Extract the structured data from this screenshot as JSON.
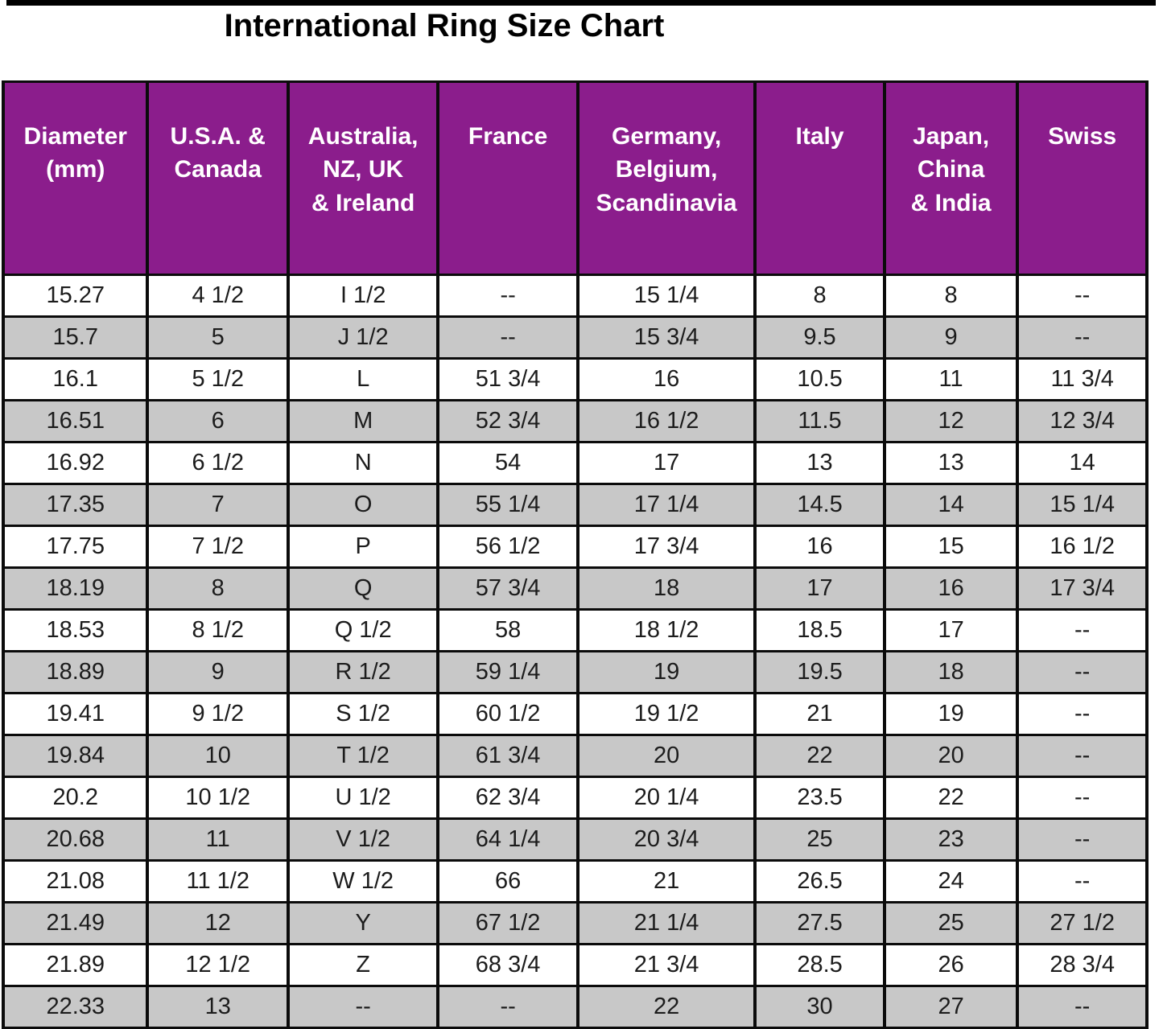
{
  "title": "International Ring Size Chart",
  "colors": {
    "header_bg": "#8E1690",
    "header_text": "#FFFFFF",
    "row_bg": "#FFFFFF",
    "alt_row_bg": "#C9C9C9",
    "border": "#0B0B0B",
    "text": "#1C1C1C",
    "title_text": "#000000"
  },
  "table": {
    "columns": [
      "Diameter\n(mm)",
      "U.S.A. &\nCanada",
      "Australia,\nNZ, UK\n& Ireland",
      "France",
      "Germany,\nBelgium,\nScandinavia",
      "Italy",
      "Japan,\nChina\n& India",
      "Swiss"
    ],
    "rows": [
      [
        "15.27",
        "4 1/2",
        "I 1/2",
        "--",
        "15 1/4",
        "8",
        "8",
        "--"
      ],
      [
        "15.7",
        "5",
        "J 1/2",
        "--",
        "15 3/4",
        "9.5",
        "9",
        "--"
      ],
      [
        "16.1",
        "5 1/2",
        "L",
        "51 3/4",
        "16",
        "10.5",
        "11",
        "11 3/4"
      ],
      [
        "16.51",
        "6",
        "M",
        "52 3/4",
        "16 1/2",
        "11.5",
        "12",
        "12 3/4"
      ],
      [
        "16.92",
        "6 1/2",
        "N",
        "54",
        "17",
        "13",
        "13",
        "14"
      ],
      [
        "17.35",
        "7",
        "O",
        "55 1/4",
        "17 1/4",
        "14.5",
        "14",
        "15 1/4"
      ],
      [
        "17.75",
        "7 1/2",
        "P",
        "56 1/2",
        "17 3/4",
        "16",
        "15",
        "16 1/2"
      ],
      [
        "18.19",
        "8",
        "Q",
        "57 3/4",
        "18",
        "17",
        "16",
        "17 3/4"
      ],
      [
        "18.53",
        "8 1/2",
        "Q 1/2",
        "58",
        "18 1/2",
        "18.5",
        "17",
        "--"
      ],
      [
        "18.89",
        "9",
        "R 1/2",
        "59 1/4",
        "19",
        "19.5",
        "18",
        "--"
      ],
      [
        "19.41",
        "9 1/2",
        "S 1/2",
        "60 1/2",
        "19 1/2",
        "21",
        "19",
        "--"
      ],
      [
        "19.84",
        "10",
        "T 1/2",
        "61 3/4",
        "20",
        "22",
        "20",
        "--"
      ],
      [
        "20.2",
        "10 1/2",
        "U 1/2",
        "62 3/4",
        "20 1/4",
        "23.5",
        "22",
        "--"
      ],
      [
        "20.68",
        "11",
        "V 1/2",
        "64 1/4",
        "20 3/4",
        "25",
        "23",
        "--"
      ],
      [
        "21.08",
        "11 1/2",
        "W 1/2",
        "66",
        "21",
        "26.5",
        "24",
        "--"
      ],
      [
        "21.49",
        "12",
        "Y",
        "67 1/2",
        "21 1/4",
        "27.5",
        "25",
        "27 1/2"
      ],
      [
        "21.89",
        "12 1/2",
        "Z",
        "68 3/4",
        "21 3/4",
        "28.5",
        "26",
        "28 3/4"
      ],
      [
        "22.33",
        "13",
        "--",
        "--",
        "22",
        "30",
        "27",
        "--"
      ]
    ]
  },
  "chart_data": {
    "type": "table",
    "title": "International Ring Size Chart",
    "columns": [
      "Diameter (mm)",
      "U.S.A. & Canada",
      "Australia, NZ, UK & Ireland",
      "France",
      "Germany, Belgium, Scandinavia",
      "Italy",
      "Japan, China & India",
      "Swiss"
    ],
    "rows": [
      [
        "15.27",
        "4 1/2",
        "I 1/2",
        "--",
        "15 1/4",
        "8",
        "8",
        "--"
      ],
      [
        "15.7",
        "5",
        "J 1/2",
        "--",
        "15 3/4",
        "9.5",
        "9",
        "--"
      ],
      [
        "16.1",
        "5 1/2",
        "L",
        "51 3/4",
        "16",
        "10.5",
        "11",
        "11 3/4"
      ],
      [
        "16.51",
        "6",
        "M",
        "52 3/4",
        "16 1/2",
        "11.5",
        "12",
        "12 3/4"
      ],
      [
        "16.92",
        "6 1/2",
        "N",
        "54",
        "17",
        "13",
        "13",
        "14"
      ],
      [
        "17.35",
        "7",
        "O",
        "55 1/4",
        "17 1/4",
        "14.5",
        "14",
        "15 1/4"
      ],
      [
        "17.75",
        "7 1/2",
        "P",
        "56 1/2",
        "17 3/4",
        "16",
        "15",
        "16 1/2"
      ],
      [
        "18.19",
        "8",
        "Q",
        "57 3/4",
        "18",
        "17",
        "16",
        "17 3/4"
      ],
      [
        "18.53",
        "8 1/2",
        "Q 1/2",
        "58",
        "18 1/2",
        "18.5",
        "17",
        "--"
      ],
      [
        "18.89",
        "9",
        "R 1/2",
        "59 1/4",
        "19",
        "19.5",
        "18",
        "--"
      ],
      [
        "19.41",
        "9 1/2",
        "S 1/2",
        "60 1/2",
        "19 1/2",
        "21",
        "19",
        "--"
      ],
      [
        "19.84",
        "10",
        "T 1/2",
        "61 3/4",
        "20",
        "22",
        "20",
        "--"
      ],
      [
        "20.2",
        "10 1/2",
        "U 1/2",
        "62 3/4",
        "20 1/4",
        "23.5",
        "22",
        "--"
      ],
      [
        "20.68",
        "11",
        "V 1/2",
        "64 1/4",
        "20 3/4",
        "25",
        "23",
        "--"
      ],
      [
        "21.08",
        "11 1/2",
        "W 1/2",
        "66",
        "21",
        "26.5",
        "24",
        "--"
      ],
      [
        "21.49",
        "12",
        "Y",
        "67 1/2",
        "21 1/4",
        "27.5",
        "25",
        "27 1/2"
      ],
      [
        "21.89",
        "12 1/2",
        "Z",
        "68 3/4",
        "21 3/4",
        "28.5",
        "26",
        "28 3/4"
      ],
      [
        "22.33",
        "13",
        "--",
        "--",
        "22",
        "30",
        "27",
        "--"
      ]
    ],
    "layout": {
      "header_background": "#8E1690",
      "alternating_row_shading": true,
      "grid": true
    }
  }
}
